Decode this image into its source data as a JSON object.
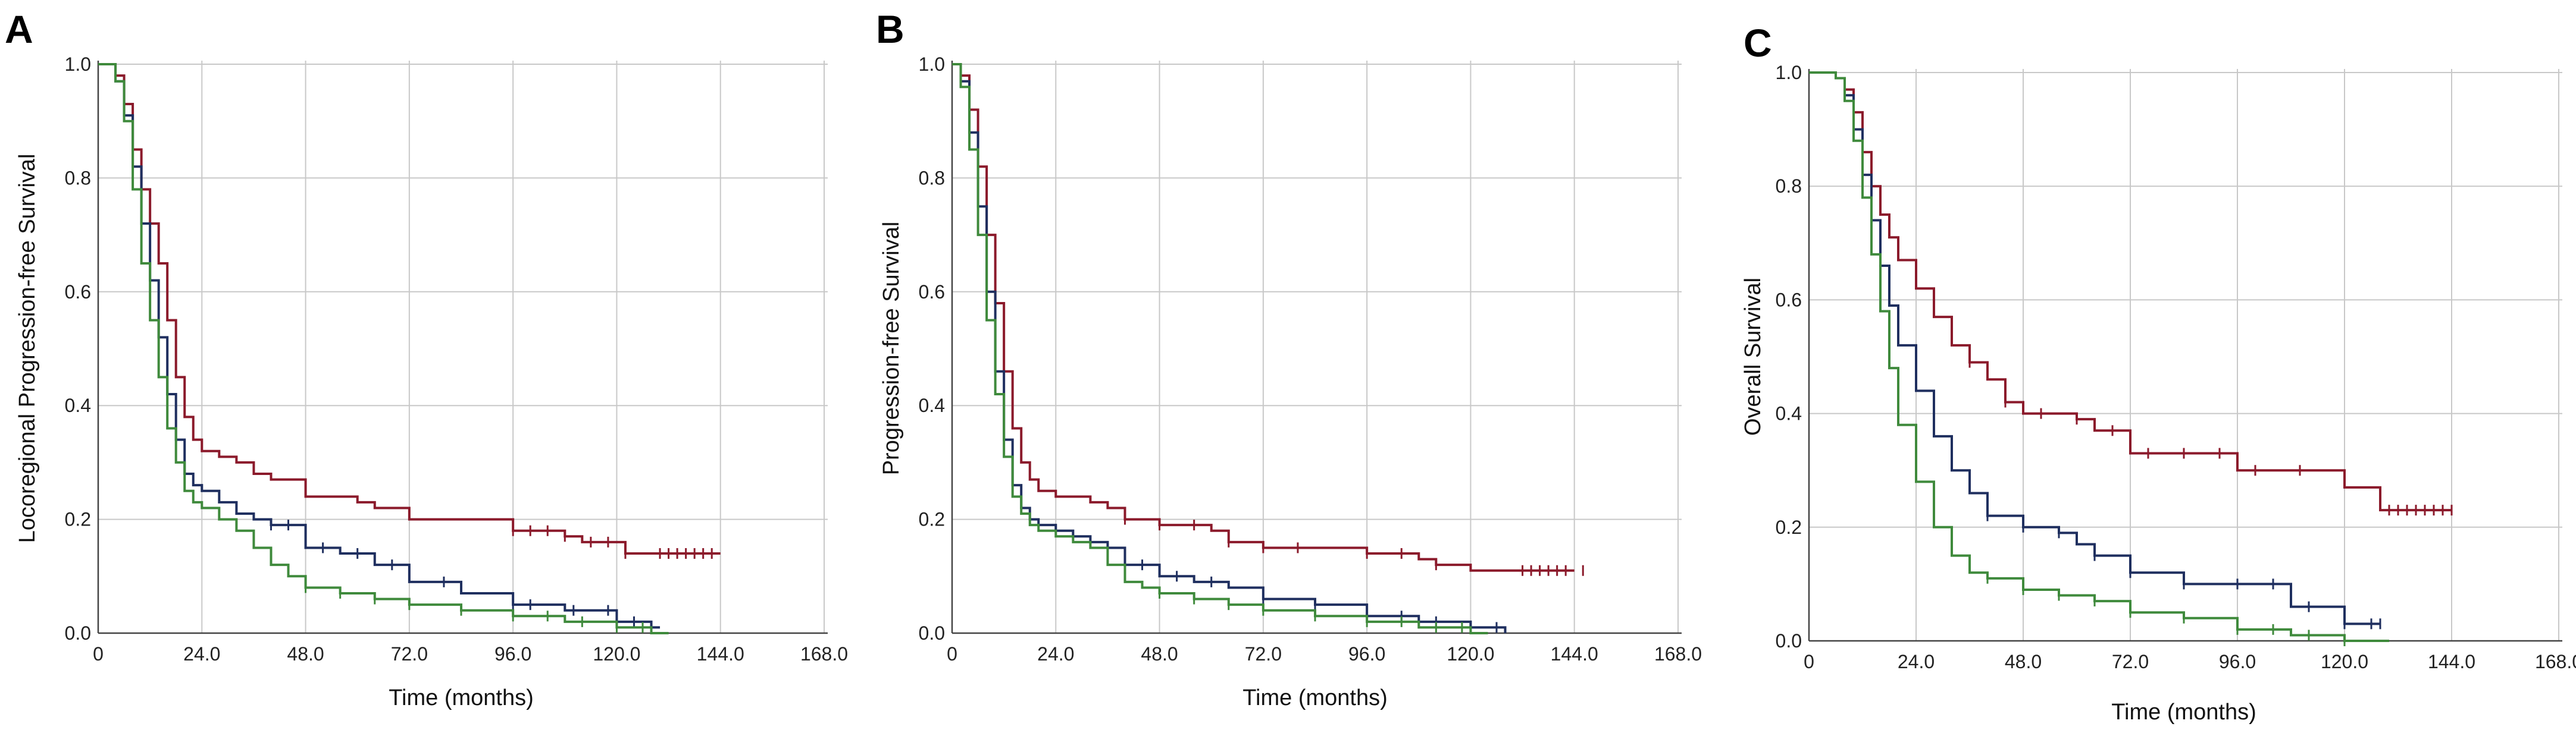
{
  "colors": {
    "group_red": "#8b1a2b",
    "group_blue": "#1f2f5f",
    "group_green": "#3f8a3c",
    "grid": "#c8c8c8",
    "axis": "#444444"
  },
  "chart_data": [
    {
      "type": "line",
      "panel_label": "A",
      "xlabel": "Time (months)",
      "ylabel": "Locoregional Progression-free Survival",
      "xlim": [
        0,
        168
      ],
      "ylim": [
        0,
        1.0
      ],
      "x_ticks": [
        "0",
        "24.0",
        "48.0",
        "72.0",
        "96.0",
        "120.0",
        "144.0",
        "168.0"
      ],
      "y_ticks": [
        "0.0",
        "0.2",
        "0.4",
        "0.6",
        "0.8",
        "1.0"
      ],
      "grid": true,
      "step": true,
      "series": [
        {
          "color": "red",
          "x": [
            0,
            4,
            6,
            8,
            10,
            12,
            14,
            16,
            18,
            20,
            22,
            24,
            28,
            32,
            36,
            40,
            48,
            60,
            64,
            72,
            84,
            96,
            108,
            112,
            122,
            130,
            144
          ],
          "y": [
            1.0,
            0.98,
            0.93,
            0.85,
            0.78,
            0.72,
            0.65,
            0.55,
            0.45,
            0.38,
            0.34,
            0.32,
            0.31,
            0.3,
            0.28,
            0.27,
            0.24,
            0.23,
            0.22,
            0.2,
            0.2,
            0.18,
            0.17,
            0.16,
            0.14,
            0.14,
            0.14
          ],
          "censor_x": [
            96,
            100,
            104,
            108,
            114,
            118,
            122,
            130,
            132,
            134,
            136,
            138,
            140,
            142
          ]
        },
        {
          "color": "blue",
          "x": [
            0,
            4,
            6,
            8,
            10,
            12,
            14,
            16,
            18,
            20,
            22,
            24,
            28,
            32,
            36,
            40,
            48,
            56,
            64,
            72,
            84,
            96,
            108,
            120,
            128,
            130
          ],
          "y": [
            1.0,
            0.97,
            0.91,
            0.82,
            0.72,
            0.62,
            0.52,
            0.42,
            0.34,
            0.28,
            0.26,
            0.25,
            0.23,
            0.21,
            0.2,
            0.19,
            0.15,
            0.14,
            0.12,
            0.09,
            0.07,
            0.05,
            0.04,
            0.02,
            0.01,
            0.01
          ],
          "censor_x": [
            40,
            44,
            52,
            60,
            68,
            80,
            96,
            100,
            110,
            118,
            124,
            128
          ]
        },
        {
          "color": "green",
          "x": [
            0,
            4,
            6,
            8,
            10,
            12,
            14,
            16,
            18,
            20,
            22,
            24,
            28,
            32,
            36,
            40,
            44,
            48,
            56,
            64,
            72,
            84,
            96,
            108,
            120,
            128,
            132
          ],
          "y": [
            1.0,
            0.97,
            0.9,
            0.78,
            0.65,
            0.55,
            0.45,
            0.36,
            0.3,
            0.25,
            0.23,
            0.22,
            0.2,
            0.18,
            0.15,
            0.12,
            0.1,
            0.08,
            0.07,
            0.06,
            0.05,
            0.04,
            0.03,
            0.02,
            0.01,
            0.0,
            0.0
          ],
          "censor_x": [
            48,
            56,
            64,
            72,
            84,
            96,
            104,
            112,
            120,
            126
          ]
        }
      ]
    },
    {
      "type": "line",
      "panel_label": "B",
      "xlabel": "Time (months)",
      "ylabel": "Progression-free Survival",
      "xlim": [
        0,
        168
      ],
      "ylim": [
        0,
        1.0
      ],
      "x_ticks": [
        "0",
        "24.0",
        "48.0",
        "72.0",
        "96.0",
        "120.0",
        "144.0",
        "168.0"
      ],
      "y_ticks": [
        "0.0",
        "0.2",
        "0.4",
        "0.6",
        "0.8",
        "1.0"
      ],
      "grid": true,
      "step": true,
      "series": [
        {
          "color": "red",
          "x": [
            0,
            2,
            4,
            6,
            8,
            10,
            12,
            14,
            16,
            18,
            20,
            24,
            28,
            32,
            36,
            40,
            48,
            60,
            64,
            72,
            84,
            96,
            108,
            112,
            120,
            130,
            144
          ],
          "y": [
            1.0,
            0.98,
            0.92,
            0.82,
            0.7,
            0.58,
            0.46,
            0.36,
            0.3,
            0.27,
            0.25,
            0.24,
            0.24,
            0.23,
            0.22,
            0.2,
            0.19,
            0.18,
            0.16,
            0.15,
            0.15,
            0.14,
            0.13,
            0.12,
            0.11,
            0.11,
            0.11
          ],
          "censor_x": [
            40,
            48,
            56,
            64,
            72,
            80,
            96,
            104,
            112,
            132,
            134,
            136,
            138,
            140,
            142,
            146
          ]
        },
        {
          "color": "blue",
          "x": [
            0,
            2,
            4,
            6,
            8,
            10,
            12,
            14,
            16,
            18,
            20,
            24,
            28,
            32,
            36,
            40,
            48,
            56,
            64,
            72,
            84,
            96,
            108,
            120,
            128
          ],
          "y": [
            1.0,
            0.97,
            0.88,
            0.75,
            0.6,
            0.46,
            0.34,
            0.26,
            0.22,
            0.2,
            0.19,
            0.18,
            0.17,
            0.16,
            0.15,
            0.12,
            0.1,
            0.09,
            0.08,
            0.06,
            0.05,
            0.03,
            0.02,
            0.01,
            0.0
          ],
          "censor_x": [
            36,
            44,
            52,
            60,
            72,
            84,
            96,
            104,
            112,
            120,
            126
          ]
        },
        {
          "color": "green",
          "x": [
            0,
            2,
            4,
            6,
            8,
            10,
            12,
            14,
            16,
            18,
            20,
            24,
            28,
            32,
            36,
            40,
            44,
            48,
            56,
            64,
            72,
            84,
            96,
            108,
            120,
            124
          ],
          "y": [
            1.0,
            0.96,
            0.85,
            0.7,
            0.55,
            0.42,
            0.31,
            0.24,
            0.21,
            0.19,
            0.18,
            0.17,
            0.16,
            0.15,
            0.12,
            0.09,
            0.08,
            0.07,
            0.06,
            0.05,
            0.04,
            0.03,
            0.02,
            0.01,
            0.0,
            0.0
          ],
          "censor_x": [
            48,
            56,
            64,
            72,
            84,
            96,
            104,
            112,
            118
          ]
        }
      ]
    },
    {
      "type": "line",
      "panel_label": "C",
      "xlabel": "Time (months)",
      "ylabel": "Overall Survival",
      "xlim": [
        0,
        168
      ],
      "ylim": [
        0,
        1.0
      ],
      "x_ticks": [
        "0",
        "24.0",
        "48.0",
        "72.0",
        "96.0",
        "120.0",
        "144.0",
        "168.0"
      ],
      "y_ticks": [
        "0.0",
        "0.2",
        "0.4",
        "0.6",
        "0.8",
        "1.0"
      ],
      "grid": true,
      "step": true,
      "series": [
        {
          "color": "red",
          "x": [
            0,
            6,
            8,
            10,
            12,
            14,
            16,
            18,
            20,
            24,
            28,
            32,
            36,
            40,
            44,
            48,
            54,
            60,
            64,
            72,
            84,
            96,
            108,
            120,
            128,
            144
          ],
          "y": [
            1.0,
            0.99,
            0.97,
            0.93,
            0.86,
            0.8,
            0.75,
            0.71,
            0.67,
            0.62,
            0.57,
            0.52,
            0.49,
            0.46,
            0.42,
            0.4,
            0.4,
            0.39,
            0.37,
            0.33,
            0.33,
            0.3,
            0.3,
            0.27,
            0.23,
            0.23
          ],
          "censor_x": [
            36,
            44,
            52,
            60,
            68,
            76,
            84,
            92,
            100,
            110,
            130,
            132,
            134,
            136,
            138,
            140,
            142,
            144
          ]
        },
        {
          "color": "blue",
          "x": [
            0,
            6,
            8,
            10,
            12,
            14,
            16,
            18,
            20,
            24,
            28,
            32,
            36,
            40,
            48,
            56,
            60,
            64,
            72,
            84,
            96,
            108,
            120,
            128
          ],
          "y": [
            1.0,
            0.99,
            0.96,
            0.9,
            0.82,
            0.74,
            0.66,
            0.59,
            0.52,
            0.44,
            0.36,
            0.3,
            0.26,
            0.22,
            0.2,
            0.19,
            0.17,
            0.15,
            0.12,
            0.1,
            0.1,
            0.06,
            0.03,
            0.03
          ],
          "censor_x": [
            40,
            48,
            56,
            64,
            72,
            84,
            96,
            104,
            112,
            120,
            126,
            128
          ]
        },
        {
          "color": "green",
          "x": [
            0,
            6,
            8,
            10,
            12,
            14,
            16,
            18,
            20,
            24,
            28,
            32,
            36,
            40,
            48,
            56,
            64,
            72,
            84,
            96,
            108,
            120,
            130
          ],
          "y": [
            1.0,
            0.99,
            0.95,
            0.88,
            0.78,
            0.68,
            0.58,
            0.48,
            0.38,
            0.28,
            0.2,
            0.15,
            0.12,
            0.11,
            0.09,
            0.08,
            0.07,
            0.05,
            0.04,
            0.02,
            0.01,
            0.0,
            0.0
          ],
          "censor_x": [
            40,
            48,
            56,
            64,
            72,
            84,
            96,
            104,
            112,
            120
          ]
        }
      ]
    }
  ]
}
